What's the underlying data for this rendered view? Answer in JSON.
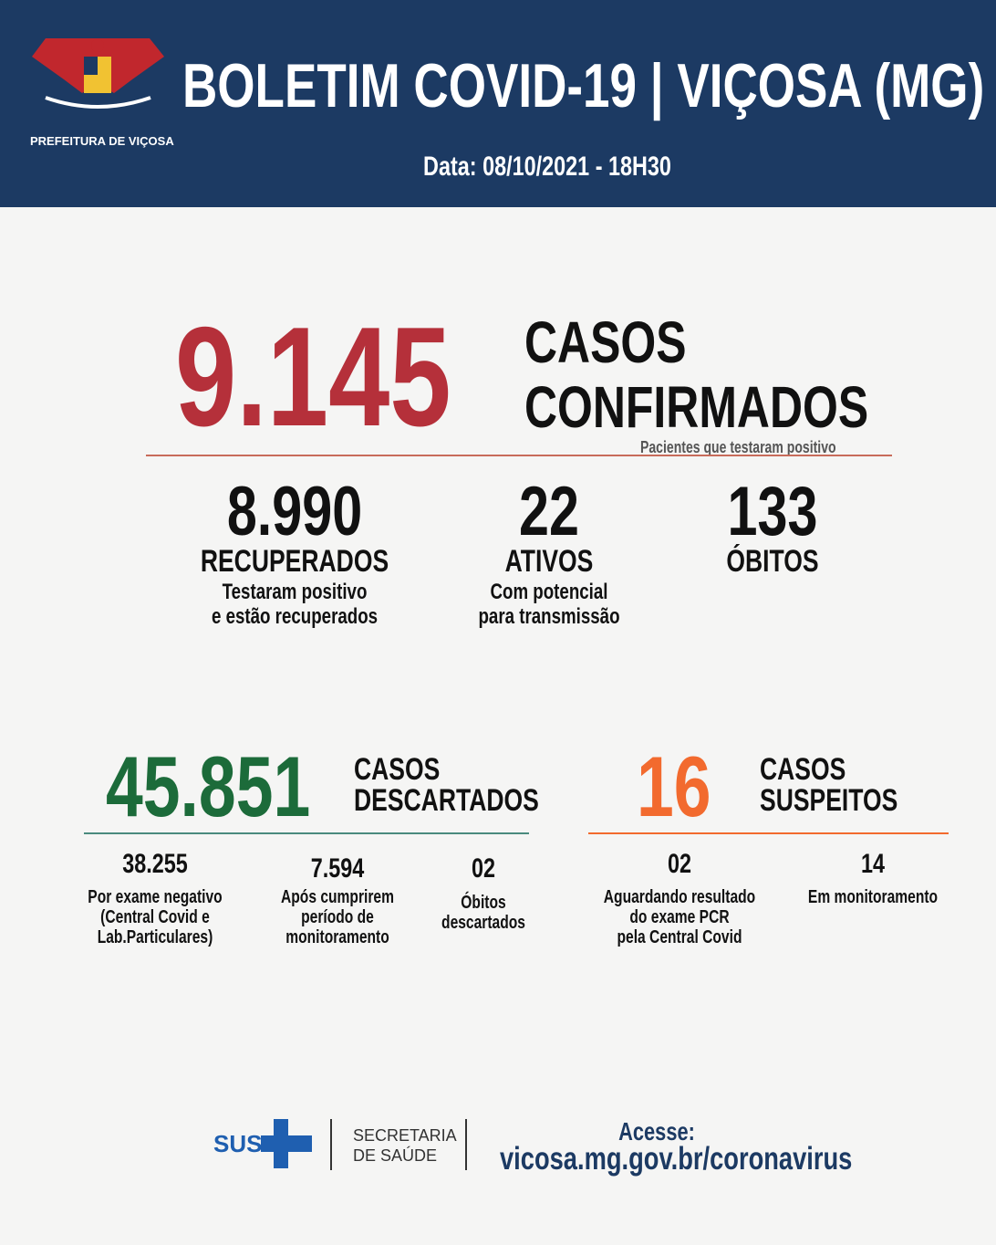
{
  "header": {
    "org": "PREFEITURA DE VIÇOSA",
    "title": "BOLETIM COVID-19 | VIÇOSA (MG)",
    "date": "Data: 08/10/2021 - 18H30"
  },
  "confirmed": {
    "value": "9.145",
    "label": [
      "CASOS",
      "CONFIRMADOS"
    ],
    "note": "Pacientes que testaram positivo"
  },
  "stats": [
    {
      "value": "8.990",
      "label": "RECUPERADOS",
      "note": [
        "Testaram positivo",
        "e estão recuperados"
      ]
    },
    {
      "value": "22",
      "label": "ATIVOS",
      "note": [
        "Com potencial",
        "para transmissão"
      ]
    },
    {
      "value": "133",
      "label": "ÓBITOS",
      "note": []
    }
  ],
  "discarded": {
    "value": "45.851",
    "label": [
      "CASOS",
      "DESCARTADOS"
    ],
    "breakdown": [
      {
        "value": "38.255",
        "note": [
          "Por exame negativo",
          "(Central Covid e",
          "Lab.Particulares)"
        ]
      },
      {
        "value": "7.594",
        "note": [
          "Após cumprirem",
          "período de",
          "monitoramento"
        ]
      },
      {
        "value": "02",
        "note": [
          "Óbitos",
          "descartados"
        ]
      }
    ]
  },
  "suspected": {
    "value": "16",
    "label": [
      "CASOS",
      "SUSPEITOS"
    ],
    "breakdown": [
      {
        "value": "02",
        "note": [
          "Aguardando resultado",
          "do exame PCR",
          "pela Central Covid"
        ]
      },
      {
        "value": "14",
        "note": [
          "Em monitoramento"
        ]
      }
    ]
  },
  "footer": {
    "sus": "SUS",
    "secretaria": [
      "SECRETARIA",
      "DE SAÚDE"
    ],
    "access": "Acesse:",
    "url": "vicosa.mg.gov.br/coronavirus"
  }
}
